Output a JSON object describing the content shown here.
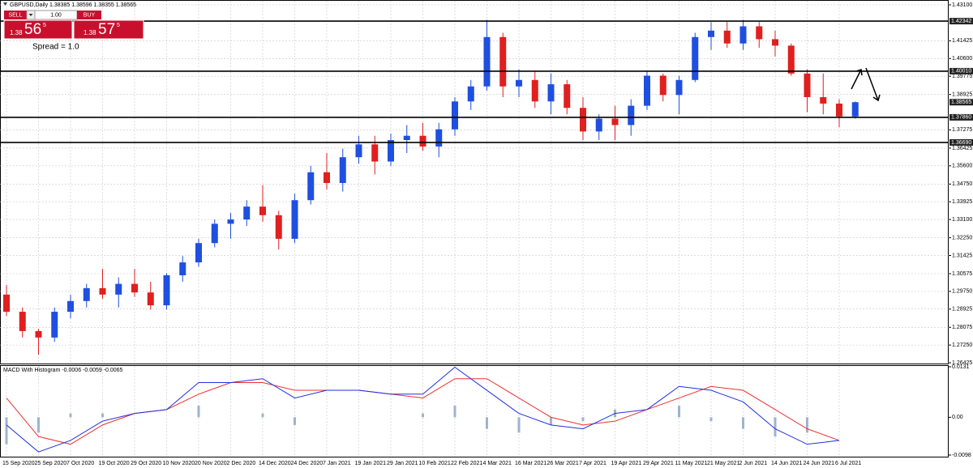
{
  "trade_panel": {
    "sell": "SELL",
    "lots": "1.00",
    "buy": "BUY",
    "bid": [
      "1.38",
      "56",
      "5"
    ],
    "ask": [
      "1.38",
      "57",
      "5"
    ],
    "spread": "Spread = 1.0"
  },
  "chart_data": [
    {
      "type": "candlestick",
      "title": "GBPUSD,Daily 1.38385 1.38596 1.38355 1.38565",
      "categories": [
        "15 Sep 2020",
        null,
        "25 Sep 2020",
        null,
        "7 Oct 2020",
        null,
        "19 Oct 2020",
        null,
        "29 Oct 2020",
        null,
        "10 Nov 2020",
        null,
        "20 Nov 2020",
        null,
        "2 Dec 2020",
        null,
        "14 Dec 2020",
        null,
        "24 Dec 2020",
        null,
        "7 Jan 2021",
        null,
        "19 Jan 2021",
        null,
        "29 Jan 2021",
        null,
        "10 Feb 2021",
        null,
        "22 Feb 2021",
        null,
        "4 Mar 2021",
        null,
        "16 Mar 2021",
        null,
        "26 Mar 2021",
        null,
        "7 Apr 2021",
        null,
        "19 Apr 2021",
        null,
        "29 Apr 2021",
        null,
        "11 May 2021",
        null,
        "21 May 2021",
        null,
        "2 Jun 2021",
        null,
        "14 Jun 2021",
        null,
        "24 Jun 2021",
        null,
        "6 Jul 2021",
        null
      ],
      "open": [
        1.296,
        1.288,
        1.279,
        1.276,
        1.288,
        1.293,
        1.299,
        1.296,
        1.301,
        1.297,
        1.291,
        1.305,
        1.311,
        1.32,
        1.329,
        1.331,
        1.337,
        1.333,
        1.322,
        1.34,
        1.353,
        1.348,
        1.36,
        1.366,
        1.358,
        1.368,
        1.37,
        1.365,
        1.373,
        1.386,
        1.393,
        1.416,
        1.393,
        1.396,
        1.386,
        1.394,
        1.383,
        1.372,
        1.378,
        1.375,
        1.384,
        1.398,
        1.389,
        1.396,
        1.416,
        1.419,
        1.413,
        1.421,
        1.415,
        1.412,
        1.399,
        1.388,
        1.385,
        1.379
      ],
      "high": [
        1.3005,
        1.29,
        1.28,
        1.29,
        1.296,
        1.301,
        1.308,
        1.304,
        1.308,
        1.302,
        1.306,
        1.314,
        1.322,
        1.331,
        1.334,
        1.34,
        1.347,
        1.335,
        1.343,
        1.356,
        1.362,
        1.364,
        1.37,
        1.37,
        1.371,
        1.375,
        1.376,
        1.376,
        1.388,
        1.396,
        1.424,
        1.418,
        1.401,
        1.4,
        1.399,
        1.396,
        1.388,
        1.38,
        1.384,
        1.387,
        1.4,
        1.399,
        1.398,
        1.418,
        1.423,
        1.423,
        1.424,
        1.423,
        1.419,
        1.413,
        1.401,
        1.399,
        1.387,
        1.386
      ],
      "low": [
        1.286,
        1.276,
        1.268,
        1.274,
        1.285,
        1.29,
        1.294,
        1.29,
        1.295,
        1.289,
        1.289,
        1.302,
        1.309,
        1.318,
        1.322,
        1.328,
        1.33,
        1.317,
        1.32,
        1.338,
        1.345,
        1.344,
        1.357,
        1.352,
        1.356,
        1.362,
        1.363,
        1.36,
        1.37,
        1.382,
        1.391,
        1.388,
        1.388,
        1.383,
        1.38,
        1.38,
        1.368,
        1.368,
        1.368,
        1.37,
        1.382,
        1.386,
        1.38,
        1.395,
        1.41,
        1.411,
        1.41,
        1.411,
        1.407,
        1.398,
        1.381,
        1.38,
        1.374,
        1.378
      ],
      "close": [
        1.288,
        1.279,
        1.276,
        1.288,
        1.293,
        1.299,
        1.296,
        1.301,
        1.297,
        1.291,
        1.305,
        1.311,
        1.32,
        1.329,
        1.331,
        1.337,
        1.333,
        1.322,
        1.34,
        1.353,
        1.348,
        1.36,
        1.366,
        1.358,
        1.368,
        1.37,
        1.365,
        1.373,
        1.386,
        1.393,
        1.416,
        1.393,
        1.396,
        1.386,
        1.394,
        1.383,
        1.372,
        1.378,
        1.375,
        1.384,
        1.398,
        1.389,
        1.396,
        1.416,
        1.419,
        1.413,
        1.421,
        1.415,
        1.412,
        1.399,
        1.388,
        1.385,
        1.379,
        1.38565
      ],
      "up_color": "#1f4fe0",
      "down_color": "#e01f1f",
      "ylim": [
        1.26425,
        1.431
      ],
      "yticks": [
        {
          "value": 1.431,
          "label": "1.43100"
        },
        1.41425,
        {
          "value": 1.406,
          "label": "1.40600"
        },
        1.39775,
        1.38925,
        1.37275,
        1.36425,
        {
          "value": 1.356,
          "label": "1.35600"
        },
        {
          "value": 1.3475,
          "label": "1.34750"
        },
        1.33925,
        {
          "value": 1.331,
          "label": "1.33100"
        },
        {
          "value": 1.3225,
          "label": "1.32250"
        },
        1.31425,
        1.30575,
        {
          "value": 1.2975,
          "label": "1.29750"
        },
        1.28925,
        1.28075,
        {
          "value": 1.2725,
          "label": "1.27250"
        },
        1.26425
      ],
      "levels": [
        1.42342,
        {
          "value": 1.4001,
          "label": "1.40010"
        },
        {
          "value": 1.3786,
          "label": "1.37860"
        },
        {
          "value": 1.3669,
          "label": "1.36690"
        }
      ],
      "last_price": 1.38565,
      "grid": true
    },
    {
      "type": "macd",
      "title": "MACD With Histogram -0.0006 -0.0059 -0.0065",
      "ylim": [
        -0.0098,
        0.0131
      ],
      "yticks": [
        0.0131,
        {
          "value": 0,
          "label": "0.00"
        },
        -0.0098
      ],
      "histogram": {
        "color": "#9fb4cc",
        "values": [
          -0.007,
          -0.004,
          0.001,
          0.001,
          0.0,
          0.0,
          0.003,
          0.0,
          0.001,
          -0.002,
          0.0,
          0.0,
          0.0,
          0.001,
          0.003,
          -0.003,
          -0.004,
          -0.002,
          -0.001,
          0.002,
          0.0,
          0.003,
          -0.001,
          -0.003,
          -0.005,
          -0.004,
          0.0
        ]
      },
      "macd": {
        "color": "#2030e0",
        "values": [
          -0.002,
          -0.009,
          -0.006,
          -0.001,
          0.001,
          0.002,
          0.009,
          0.009,
          0.01,
          0.005,
          0.007,
          0.007,
          0.006,
          0.006,
          0.013,
          0.007,
          0.001,
          -0.002,
          -0.003,
          0.001,
          0.002,
          0.008,
          0.007,
          0.004,
          -0.003,
          -0.007,
          -0.006
        ]
      },
      "signal": {
        "color": "#f03030",
        "values": [
          0.005,
          -0.005,
          -0.007,
          -0.002,
          0.001,
          0.002,
          0.006,
          0.009,
          0.009,
          0.007,
          0.007,
          0.007,
          0.006,
          0.005,
          0.01,
          0.01,
          0.005,
          0.0,
          -0.002,
          -0.001,
          0.002,
          0.005,
          0.008,
          0.007,
          0.002,
          -0.003,
          -0.006
        ]
      }
    }
  ]
}
